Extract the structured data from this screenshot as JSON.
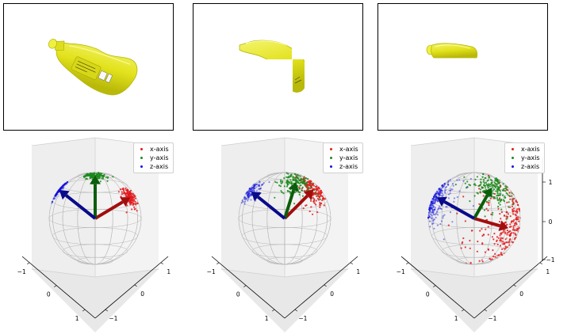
{
  "colors": {
    "x_axis": "#e31a1c",
    "y_axis": "#1a8a1a",
    "z_axis": "#1010e0",
    "x_arrow": "#a30d0d",
    "y_arrow": "#0b5e0b",
    "z_arrow": "#0a0a8c",
    "object": "#e8e81a",
    "pane": "#f2f2f2",
    "sphere": "#b4b4b4"
  },
  "images": [
    {
      "name": "full-object",
      "object": "bottle-icon"
    },
    {
      "name": "partial-object",
      "object": "bottle-icon"
    },
    {
      "name": "small-fragment",
      "object": "bottle-icon"
    }
  ],
  "chart_data": [
    {
      "type": "scatter",
      "projection": "3d",
      "legend": [
        "x-axis",
        "y-axis",
        "z-axis"
      ],
      "legend_position": "top-right",
      "ticks_left": [
        "−1",
        "0",
        "1"
      ],
      "ticks_right": [
        "−1",
        "0",
        "1"
      ],
      "ticks_side": [],
      "spread": [
        0.13,
        0.13,
        0.11
      ],
      "series": [
        {
          "name": "x-axis",
          "count": 140,
          "mean": [
            0.75,
            0.45,
            0.45
          ]
        },
        {
          "name": "y-axis",
          "count": 130,
          "mean": [
            0.0,
            0.35,
            0.94
          ]
        },
        {
          "name": "z-axis",
          "count": 120,
          "mean": [
            -0.78,
            -0.05,
            0.62
          ]
        }
      ]
    },
    {
      "type": "scatter",
      "projection": "3d",
      "legend": [
        "x-axis",
        "y-axis",
        "z-axis"
      ],
      "legend_position": "top-right",
      "ticks_left": [
        "−1",
        "0",
        "1"
      ],
      "ticks_right": [
        "−1",
        "0",
        "1"
      ],
      "ticks_side": [],
      "spread": [
        0.2,
        0.2,
        0.15
      ],
      "series": [
        {
          "name": "x-axis",
          "count": 170,
          "mean": [
            0.62,
            0.45,
            0.62
          ]
        },
        {
          "name": "y-axis",
          "count": 150,
          "mean": [
            0.25,
            0.55,
            0.8
          ]
        },
        {
          "name": "z-axis",
          "count": 120,
          "mean": [
            -0.72,
            -0.35,
            0.58
          ]
        }
      ]
    },
    {
      "type": "scatter",
      "projection": "3d",
      "legend": [
        "x-axis",
        "y-axis",
        "z-axis"
      ],
      "legend_position": "top-right",
      "ticks_left": [
        "−1",
        "0",
        "1"
      ],
      "ticks_right": [
        "−1",
        "0",
        "1"
      ],
      "ticks_side": [
        "1",
        "0",
        "−1"
      ],
      "spread": [
        0.45,
        0.3,
        0.28
      ],
      "series": [
        {
          "name": "x-axis",
          "count": 260,
          "mean": [
            0.7,
            0.6,
            -0.2
          ]
        },
        {
          "name": "y-axis",
          "count": 180,
          "mean": [
            0.45,
            0.75,
            0.8
          ]
        },
        {
          "name": "z-axis",
          "count": 220,
          "mean": [
            -0.8,
            -0.35,
            0.45
          ]
        }
      ]
    }
  ]
}
